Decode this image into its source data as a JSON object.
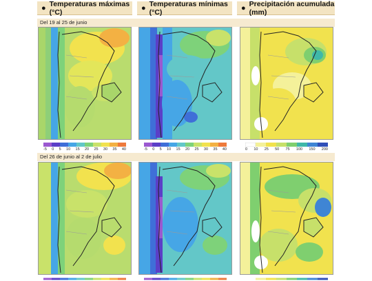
{
  "headers": {
    "max": "Temperaturas máximas (°C)",
    "min": "Temperaturas mínimas (°C)",
    "precip": "Precipitación acumulada (mm)"
  },
  "periods": [
    "Del 19 al 25 de junio",
    "Del 26 de junio al 2 de julio"
  ],
  "scales": {
    "temperature_max": [
      "-5",
      "0",
      "5",
      "10",
      "15",
      "20",
      "25",
      "30",
      "35",
      "40"
    ],
    "temperature_min": [
      "-5",
      "0",
      "5",
      "10",
      "15",
      "20",
      "25",
      "30",
      "35",
      "40"
    ],
    "precipitation": [
      "0",
      "10",
      "25",
      "50",
      "75",
      "100",
      "150",
      "200"
    ]
  },
  "colors": {
    "temp": [
      "#9b59d0",
      "#5b3fc7",
      "#3f6fd8",
      "#46a6e6",
      "#63c7c8",
      "#7ed27a",
      "#c9e26a",
      "#f2e24e",
      "#f3b143",
      "#ee7a3c"
    ],
    "precip": [
      "#ffffff",
      "#f4f19a",
      "#f1e24e",
      "#c7e06a",
      "#7fcf6f",
      "#3fb8a8",
      "#3f85d4",
      "#2f4fb8"
    ],
    "header_bg": "#f3e4c2"
  }
}
